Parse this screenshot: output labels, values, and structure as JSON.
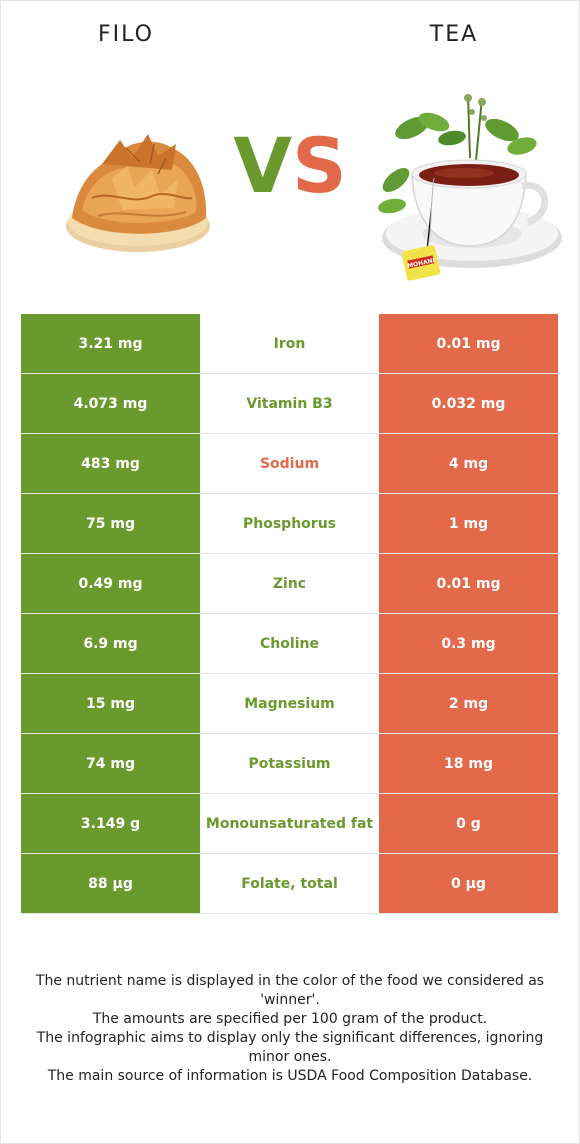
{
  "header": {
    "left_food": "FILO",
    "right_food": "TEA",
    "vs_v": "V",
    "vs_s": "S"
  },
  "colors": {
    "left": "#6a9a2e",
    "right": "#e26a4a"
  },
  "nutrients": [
    {
      "name": "Iron",
      "left": "3.21 mg",
      "right": "0.01 mg",
      "winner": "left"
    },
    {
      "name": "Vitamin B3",
      "left": "4.073 mg",
      "right": "0.032 mg",
      "winner": "left"
    },
    {
      "name": "Sodium",
      "left": "483 mg",
      "right": "4 mg",
      "winner": "right"
    },
    {
      "name": "Phosphorus",
      "left": "75 mg",
      "right": "1 mg",
      "winner": "left"
    },
    {
      "name": "Zinc",
      "left": "0.49 mg",
      "right": "0.01 mg",
      "winner": "left"
    },
    {
      "name": "Choline",
      "left": "6.9 mg",
      "right": "0.3 mg",
      "winner": "left"
    },
    {
      "name": "Magnesium",
      "left": "15 mg",
      "right": "2 mg",
      "winner": "left"
    },
    {
      "name": "Potassium",
      "left": "74 mg",
      "right": "18 mg",
      "winner": "left"
    },
    {
      "name": "Monounsaturated fat",
      "left": "3.149 g",
      "right": "0 g",
      "winner": "left"
    },
    {
      "name": "Folate, total",
      "left": "88 µg",
      "right": "0 µg",
      "winner": "left"
    }
  ],
  "notes": [
    "The nutrient name is displayed in the color of the food we considered as 'winner'.",
    "The amounts are specified per 100 gram of the product.",
    "The infographic aims to display only the significant differences, ignoring minor ones.",
    "The main source of information is USDA Food Composition Database."
  ],
  "tea_packet_label": "MOHANI"
}
